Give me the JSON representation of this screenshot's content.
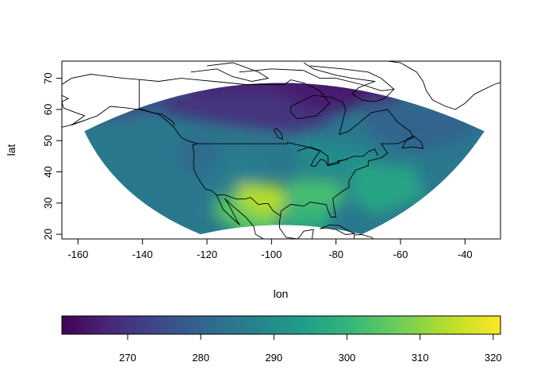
{
  "chart_data": [
    {
      "type": "heatmap",
      "xlabel": "lon",
      "ylabel": "lat",
      "xlim": [
        -165,
        -29
      ],
      "ylim": [
        18.5,
        75.5
      ],
      "x_ticks": [
        -160,
        -140,
        -120,
        -100,
        -80,
        -60,
        -40
      ],
      "y_ticks": [
        20,
        30,
        40,
        50,
        60,
        70
      ],
      "x_tick_labels": [
        "-160",
        "-140",
        "-120",
        "-100",
        "-80",
        "-60",
        "-40"
      ],
      "y_tick_labels": [
        "20",
        "30",
        "40",
        "50",
        "60",
        "70"
      ],
      "grid": false,
      "overlay": "coastlines and political boundaries",
      "colormap": "viridis",
      "domain_corners": {
        "south_west": [
          -122,
          20
        ],
        "north_west": [
          -158,
          53
        ],
        "north_east": [
          -34,
          53
        ],
        "south_east": [
          -72,
          20
        ]
      },
      "value_range": [
        261,
        321
      ],
      "field_description_levels": [
        {
          "region": "arctic canada / hudson bay",
          "value": 266
        },
        {
          "region": "northern canada",
          "value": 270
        },
        {
          "region": "alaska / yukon",
          "value": 276
        },
        {
          "region": "pacific northwest",
          "value": 282
        },
        {
          "region": "northern great plains",
          "value": 285
        },
        {
          "region": "great lakes / northeast",
          "value": 290
        },
        {
          "region": "rocky mountains",
          "value": 287
        },
        {
          "region": "southeast us",
          "value": 303
        },
        {
          "region": "texas / northern mexico",
          "value": 314
        },
        {
          "region": "mexico",
          "value": 305
        },
        {
          "region": "gulf of mexico",
          "value": 300
        },
        {
          "region": "western atlantic",
          "value": 296
        },
        {
          "region": "north atlantic / labrador sea",
          "value": 280
        },
        {
          "region": "north pacific",
          "value": 285
        }
      ]
    },
    {
      "type": "colorbar",
      "range": [
        261,
        321
      ],
      "ticks": [
        270,
        280,
        290,
        300,
        310,
        320
      ],
      "tick_labels": [
        "270",
        "280",
        "290",
        "300",
        "310",
        "320"
      ],
      "colormap": "viridis",
      "colors": [
        "#440154",
        "#482878",
        "#3e4989",
        "#31688e",
        "#26828e",
        "#1f9e89",
        "#35b779",
        "#6ece58",
        "#b5de2b",
        "#fde725"
      ]
    }
  ]
}
